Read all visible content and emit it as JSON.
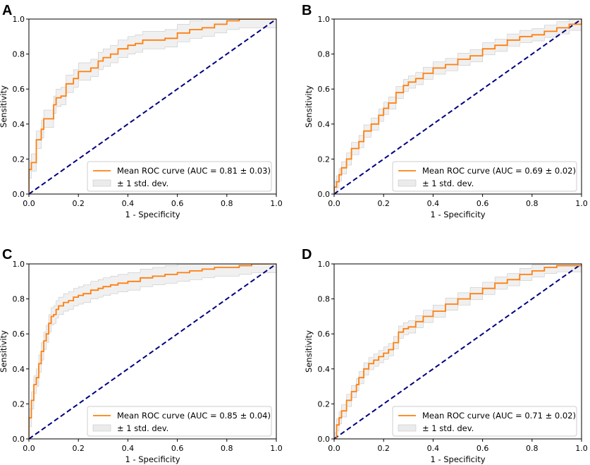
{
  "colors": {
    "mean_line": "#ff7f0e",
    "std_band": "#d3d3d3",
    "chance_line": "#000080",
    "axes": "#000000"
  },
  "chart_data": [
    {
      "panel": "A",
      "type": "line",
      "xlabel": "1 - Specificity",
      "ylabel": "Sensitivity",
      "xlim": [
        0,
        1
      ],
      "ylim": [
        0,
        1
      ],
      "xticks": [
        "0.0",
        "0.2",
        "0.4",
        "0.6",
        "0.8",
        "1.0"
      ],
      "yticks": [
        "0.0",
        "0.2",
        "0.4",
        "0.6",
        "0.8",
        "1.0"
      ],
      "legend": {
        "position": "lower-right",
        "mean_label": "Mean ROC curve (AUC = 0.81 ± 0.03)",
        "std_label": "± 1 std. dev."
      },
      "series": [
        {
          "name": "Mean ROC",
          "x": [
            0,
            0.0,
            0.01,
            0.02,
            0.03,
            0.04,
            0.05,
            0.06,
            0.08,
            0.1,
            0.11,
            0.13,
            0.15,
            0.18,
            0.2,
            0.22,
            0.25,
            0.28,
            0.3,
            0.33,
            0.36,
            0.4,
            0.43,
            0.46,
            0.5,
            0.55,
            0.6,
            0.65,
            0.7,
            0.75,
            0.8,
            0.85,
            0.9,
            1.0
          ],
          "y": [
            0,
            0.14,
            0.18,
            0.18,
            0.31,
            0.31,
            0.37,
            0.43,
            0.43,
            0.51,
            0.55,
            0.56,
            0.63,
            0.66,
            0.7,
            0.7,
            0.72,
            0.76,
            0.78,
            0.8,
            0.83,
            0.85,
            0.86,
            0.88,
            0.88,
            0.89,
            0.92,
            0.94,
            0.95,
            0.97,
            0.99,
            1.0,
            1.0,
            1.0
          ]
        },
        {
          "name": "Chance",
          "x": [
            0,
            1
          ],
          "y": [
            0,
            1
          ]
        }
      ],
      "std_halfwidth": 0.05
    },
    {
      "panel": "B",
      "type": "line",
      "xlabel": "1 - Specificity",
      "ylabel": "Sensitivity",
      "xlim": [
        0,
        1
      ],
      "ylim": [
        0,
        1
      ],
      "xticks": [
        "0.0",
        "0.2",
        "0.4",
        "0.6",
        "0.8",
        "1.0"
      ],
      "yticks": [
        "0.0",
        "0.2",
        "0.4",
        "0.6",
        "0.8",
        "1.0"
      ],
      "legend": {
        "position": "lower-right",
        "mean_label": "Mean ROC curve (AUC = 0.69 ± 0.02)",
        "std_label": "± 1 std. dev."
      },
      "series": [
        {
          "name": "Mean ROC",
          "x": [
            0,
            0.0,
            0.01,
            0.02,
            0.03,
            0.05,
            0.07,
            0.1,
            0.12,
            0.15,
            0.18,
            0.2,
            0.22,
            0.25,
            0.28,
            0.3,
            0.33,
            0.36,
            0.4,
            0.45,
            0.5,
            0.55,
            0.6,
            0.65,
            0.7,
            0.75,
            0.8,
            0.85,
            0.9,
            0.95,
            1.0
          ],
          "y": [
            0,
            0.04,
            0.07,
            0.11,
            0.15,
            0.2,
            0.26,
            0.3,
            0.36,
            0.4,
            0.45,
            0.49,
            0.52,
            0.58,
            0.62,
            0.64,
            0.66,
            0.69,
            0.72,
            0.74,
            0.77,
            0.79,
            0.83,
            0.85,
            0.88,
            0.9,
            0.91,
            0.93,
            0.95,
            0.97,
            1.0
          ]
        },
        {
          "name": "Chance",
          "x": [
            0,
            1
          ],
          "y": [
            0,
            1
          ]
        }
      ],
      "std_halfwidth": 0.035
    },
    {
      "panel": "C",
      "type": "line",
      "xlabel": "1 - Specificity",
      "ylabel": "Sensitivity",
      "xlim": [
        0,
        1
      ],
      "ylim": [
        0,
        1
      ],
      "xticks": [
        "0.0",
        "0.2",
        "0.4",
        "0.6",
        "0.8",
        "1.0"
      ],
      "yticks": [
        "0.0",
        "0.2",
        "0.4",
        "0.6",
        "0.8",
        "1.0"
      ],
      "legend": {
        "position": "lower-right",
        "mean_label": "Mean ROC curve (AUC = 0.85 ± 0.04)",
        "std_label": "± 1 std. dev."
      },
      "series": [
        {
          "name": "Mean ROC",
          "x": [
            0,
            0.0,
            0.01,
            0.02,
            0.03,
            0.04,
            0.05,
            0.06,
            0.07,
            0.08,
            0.09,
            0.1,
            0.11,
            0.12,
            0.14,
            0.16,
            0.18,
            0.2,
            0.22,
            0.25,
            0.28,
            0.3,
            0.33,
            0.36,
            0.4,
            0.45,
            0.5,
            0.55,
            0.6,
            0.65,
            0.7,
            0.75,
            0.8,
            0.85,
            0.9,
            1.0
          ],
          "y": [
            0,
            0.12,
            0.22,
            0.31,
            0.35,
            0.43,
            0.5,
            0.56,
            0.6,
            0.66,
            0.7,
            0.71,
            0.74,
            0.76,
            0.78,
            0.79,
            0.81,
            0.82,
            0.83,
            0.85,
            0.86,
            0.87,
            0.88,
            0.89,
            0.9,
            0.92,
            0.93,
            0.94,
            0.95,
            0.96,
            0.97,
            0.98,
            0.98,
            0.99,
            1.0,
            1.0
          ]
        },
        {
          "name": "Chance",
          "x": [
            0,
            1
          ],
          "y": [
            0,
            1
          ]
        }
      ],
      "std_halfwidth": 0.05
    },
    {
      "panel": "D",
      "type": "line",
      "xlabel": "1 - Specificity",
      "ylabel": "Sensitivity",
      "xlim": [
        0,
        1
      ],
      "ylim": [
        0,
        1
      ],
      "xticks": [
        "0.0",
        "0.2",
        "0.4",
        "0.6",
        "0.8",
        "1.0"
      ],
      "yticks": [
        "0.0",
        "0.2",
        "0.4",
        "0.6",
        "0.8",
        "1.0"
      ],
      "legend": {
        "position": "lower-right",
        "mean_label": "Mean ROC curve (AUC = 0.71 ± 0.02)",
        "std_label": "± 1 std. dev."
      },
      "series": [
        {
          "name": "Mean ROC",
          "x": [
            0,
            0.01,
            0.02,
            0.03,
            0.05,
            0.07,
            0.09,
            0.1,
            0.12,
            0.14,
            0.16,
            0.18,
            0.2,
            0.22,
            0.24,
            0.26,
            0.28,
            0.3,
            0.33,
            0.36,
            0.4,
            0.45,
            0.5,
            0.55,
            0.6,
            0.65,
            0.7,
            0.75,
            0.8,
            0.85,
            0.9,
            1.0
          ],
          "y": [
            0,
            0.08,
            0.12,
            0.16,
            0.22,
            0.27,
            0.31,
            0.35,
            0.4,
            0.43,
            0.45,
            0.47,
            0.49,
            0.51,
            0.55,
            0.61,
            0.63,
            0.64,
            0.67,
            0.7,
            0.73,
            0.77,
            0.8,
            0.83,
            0.86,
            0.89,
            0.91,
            0.94,
            0.96,
            0.98,
            0.99,
            1.0
          ]
        },
        {
          "name": "Chance",
          "x": [
            0,
            1
          ],
          "y": [
            0,
            1
          ]
        }
      ],
      "std_halfwidth": 0.035
    }
  ]
}
